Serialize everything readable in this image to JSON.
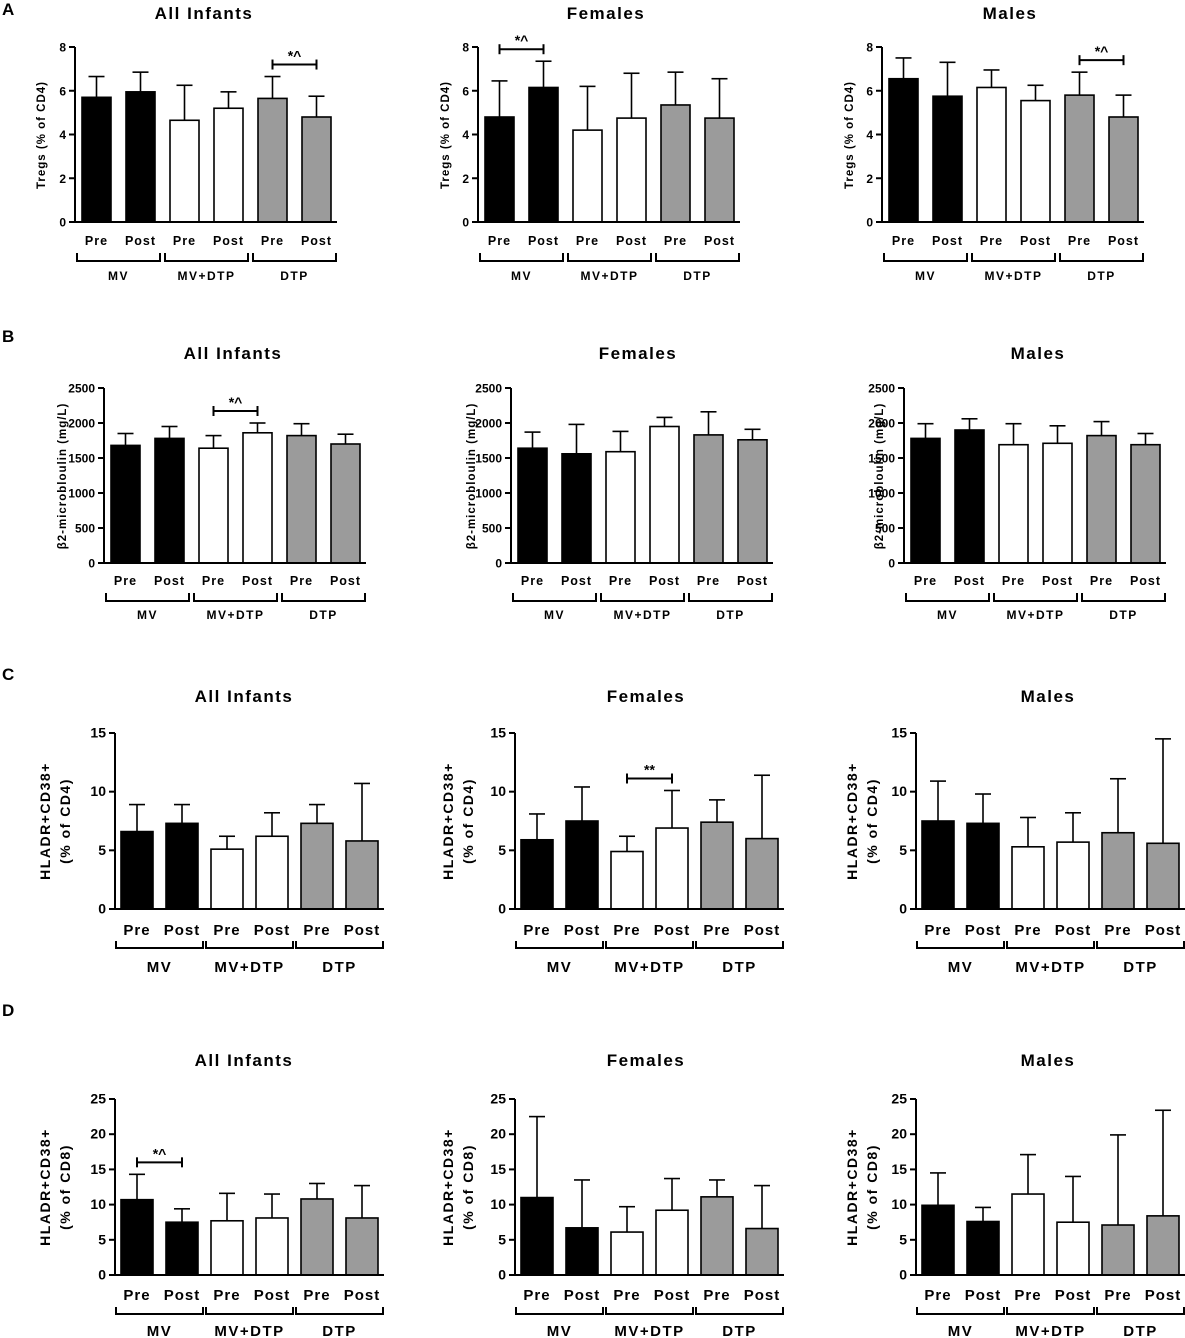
{
  "figure": {
    "panels": [
      {
        "letter": "A"
      },
      {
        "letter": "B"
      },
      {
        "letter": "C"
      },
      {
        "letter": "D"
      }
    ]
  },
  "colors": {
    "MV": "#000000",
    "MV+DTP": "#ffffff",
    "DTP": "#9b9b9b",
    "outline": "#000000"
  },
  "chart_data": [
    {
      "id": "A1",
      "type": "bar",
      "panel": "A",
      "title": "All Infants",
      "ylabel": "Tregs (% of CD4)",
      "ylim": [
        0,
        8
      ],
      "yticks": [
        0,
        2,
        4,
        6,
        8
      ],
      "groups": [
        "MV",
        "MV+DTP",
        "DTP"
      ],
      "categories": [
        "Pre",
        "Post",
        "Pre",
        "Post",
        "Pre",
        "Post"
      ],
      "values": [
        5.7,
        5.95,
        4.65,
        5.2,
        5.65,
        4.8
      ],
      "errors": [
        0.95,
        0.9,
        1.6,
        0.75,
        1.0,
        0.95
      ],
      "significance": [
        {
          "label": "*^",
          "from": 4,
          "to": 5
        }
      ]
    },
    {
      "id": "A2",
      "type": "bar",
      "panel": "A",
      "title": "Females",
      "ylabel": "Tregs (% of CD4)",
      "ylim": [
        0,
        8
      ],
      "yticks": [
        0,
        2,
        4,
        6,
        8
      ],
      "groups": [
        "MV",
        "MV+DTP",
        "DTP"
      ],
      "categories": [
        "Pre",
        "Post",
        "Pre",
        "Post",
        "Pre",
        "Post"
      ],
      "values": [
        4.8,
        6.15,
        4.2,
        4.75,
        5.35,
        4.75
      ],
      "errors": [
        1.65,
        1.2,
        2.0,
        2.05,
        1.5,
        1.8
      ],
      "significance": [
        {
          "label": "*^",
          "from": 0,
          "to": 1
        }
      ]
    },
    {
      "id": "A3",
      "type": "bar",
      "panel": "A",
      "title": "Males",
      "ylabel": "Tregs (% of CD4)",
      "ylim": [
        0,
        8
      ],
      "yticks": [
        0,
        2,
        4,
        6,
        8
      ],
      "groups": [
        "MV",
        "MV+DTP",
        "DTP"
      ],
      "categories": [
        "Pre",
        "Post",
        "Pre",
        "Post",
        "Pre",
        "Post"
      ],
      "values": [
        6.55,
        5.75,
        6.15,
        5.55,
        5.8,
        4.8
      ],
      "errors": [
        0.95,
        1.55,
        0.8,
        0.7,
        1.05,
        1.0
      ],
      "significance": [
        {
          "label": "*^",
          "from": 4,
          "to": 5
        }
      ]
    },
    {
      "id": "B1",
      "type": "bar",
      "panel": "B",
      "title": "All Infants",
      "ylabel": "β2-microbloulin (mg/L)",
      "ylim": [
        0,
        2500
      ],
      "yticks": [
        0,
        500,
        1000,
        1500,
        2000,
        2500
      ],
      "groups": [
        "MV",
        "MV+DTP",
        "DTP"
      ],
      "categories": [
        "Pre",
        "Post",
        "Pre",
        "Post",
        "Pre",
        "Post"
      ],
      "values": [
        1680,
        1780,
        1640,
        1860,
        1820,
        1700
      ],
      "errors": [
        170,
        170,
        180,
        140,
        170,
        140
      ],
      "significance": [
        {
          "label": "*^",
          "from": 2,
          "to": 3
        }
      ]
    },
    {
      "id": "B2",
      "type": "bar",
      "panel": "B",
      "title": "Females",
      "ylabel": "β2-microbloulin (mg/L)",
      "ylim": [
        0,
        2500
      ],
      "yticks": [
        0,
        500,
        1000,
        1500,
        2000,
        2500
      ],
      "groups": [
        "MV",
        "MV+DTP",
        "DTP"
      ],
      "categories": [
        "Pre",
        "Post",
        "Pre",
        "Post",
        "Pre",
        "Post"
      ],
      "values": [
        1640,
        1560,
        1590,
        1950,
        1830,
        1760
      ],
      "errors": [
        230,
        420,
        290,
        130,
        330,
        150
      ],
      "significance": []
    },
    {
      "id": "B3",
      "type": "bar",
      "panel": "B",
      "title": "Males",
      "ylabel": "β2-microbloulin (mg/L)",
      "ylim": [
        0,
        2500
      ],
      "yticks": [
        0,
        500,
        1000,
        1500,
        2000,
        2500
      ],
      "groups": [
        "MV",
        "MV+DTP",
        "DTP"
      ],
      "categories": [
        "Pre",
        "Post",
        "Pre",
        "Post",
        "Pre",
        "Post"
      ],
      "values": [
        1780,
        1900,
        1690,
        1710,
        1820,
        1690
      ],
      "errors": [
        210,
        160,
        300,
        250,
        200,
        160
      ],
      "significance": []
    },
    {
      "id": "C1",
      "type": "bar",
      "panel": "C",
      "title": "All Infants",
      "ylabel": [
        "HLADR+CD38+",
        "(% of CD4)"
      ],
      "ylim": [
        0,
        15
      ],
      "yticks": [
        0,
        5,
        10,
        15
      ],
      "groups": [
        "MV",
        "MV+DTP",
        "DTP"
      ],
      "categories": [
        "Pre",
        "Post",
        "Pre",
        "Post",
        "Pre",
        "Post"
      ],
      "values": [
        6.6,
        7.3,
        5.1,
        6.2,
        7.3,
        5.8
      ],
      "errors": [
        2.3,
        1.6,
        1.1,
        2.0,
        1.6,
        4.9
      ],
      "significance": []
    },
    {
      "id": "C2",
      "type": "bar",
      "panel": "C",
      "title": "Females",
      "ylabel": [
        "HLADR+CD38+",
        "(% of CD4)"
      ],
      "ylim": [
        0,
        15
      ],
      "yticks": [
        0,
        5,
        10,
        15
      ],
      "groups": [
        "MV",
        "MV+DTP",
        "DTP"
      ],
      "categories": [
        "Pre",
        "Post",
        "Pre",
        "Post",
        "Pre",
        "Post"
      ],
      "values": [
        5.9,
        7.5,
        4.9,
        6.9,
        7.4,
        6.0
      ],
      "errors": [
        2.2,
        2.9,
        1.3,
        3.2,
        1.9,
        5.4
      ],
      "significance": [
        {
          "label": "**",
          "from": 2,
          "to": 3
        }
      ]
    },
    {
      "id": "C3",
      "type": "bar",
      "panel": "C",
      "title": "Males",
      "ylabel": [
        "HLADR+CD38+",
        "(% of CD4)"
      ],
      "ylim": [
        0,
        15
      ],
      "yticks": [
        0,
        5,
        10,
        15
      ],
      "groups": [
        "MV",
        "MV+DTP",
        "DTP"
      ],
      "categories": [
        "Pre",
        "Post",
        "Pre",
        "Post",
        "Pre",
        "Post"
      ],
      "values": [
        7.5,
        7.3,
        5.3,
        5.7,
        6.5,
        5.6
      ],
      "errors": [
        3.4,
        2.5,
        2.5,
        2.5,
        4.6,
        8.9
      ],
      "significance": []
    },
    {
      "id": "D1",
      "type": "bar",
      "panel": "D",
      "title": "All Infants",
      "ylabel": [
        "HLADR+CD38+",
        "(% of CD8)"
      ],
      "ylim": [
        0,
        25
      ],
      "yticks": [
        0,
        5,
        10,
        15,
        20,
        25
      ],
      "groups": [
        "MV",
        "MV+DTP",
        "DTP"
      ],
      "categories": [
        "Pre",
        "Post",
        "Pre",
        "Post",
        "Pre",
        "Post"
      ],
      "values": [
        10.7,
        7.5,
        7.7,
        8.1,
        10.8,
        8.1
      ],
      "errors": [
        3.6,
        1.9,
        3.9,
        3.4,
        2.2,
        4.6
      ],
      "significance": [
        {
          "label": "*^",
          "from": 0,
          "to": 1
        }
      ]
    },
    {
      "id": "D2",
      "type": "bar",
      "panel": "D",
      "title": "Females",
      "ylabel": [
        "HLADR+CD38+",
        "(% of CD8)"
      ],
      "ylim": [
        0,
        25
      ],
      "yticks": [
        0,
        5,
        10,
        15,
        20,
        25
      ],
      "groups": [
        "MV",
        "MV+DTP",
        "DTP"
      ],
      "categories": [
        "Pre",
        "Post",
        "Pre",
        "Post",
        "Pre",
        "Post"
      ],
      "values": [
        11.0,
        6.7,
        6.1,
        9.2,
        11.1,
        6.6
      ],
      "errors": [
        11.5,
        6.8,
        3.6,
        4.5,
        2.4,
        6.1
      ],
      "significance": []
    },
    {
      "id": "D3",
      "type": "bar",
      "panel": "D",
      "title": "Males",
      "ylabel": [
        "HLADR+CD38+",
        "(% of CD8)"
      ],
      "ylim": [
        0,
        25
      ],
      "yticks": [
        0,
        5,
        10,
        15,
        20,
        25
      ],
      "groups": [
        "MV",
        "MV+DTP",
        "DTP"
      ],
      "categories": [
        "Pre",
        "Post",
        "Pre",
        "Post",
        "Pre",
        "Post"
      ],
      "values": [
        9.9,
        7.6,
        11.5,
        7.5,
        7.1,
        8.4
      ],
      "errors": [
        4.6,
        2.0,
        5.6,
        6.5,
        12.8,
        15.0
      ],
      "significance": []
    }
  ]
}
